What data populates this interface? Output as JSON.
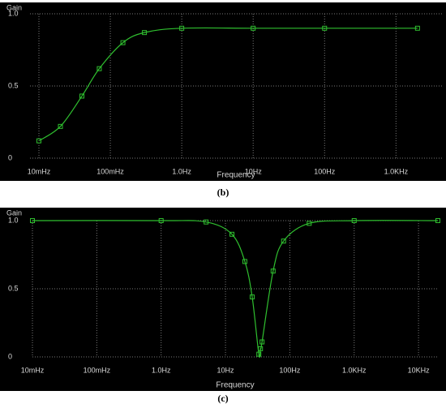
{
  "chart_data": [
    {
      "type": "line",
      "xlabel": "Frequency",
      "ylabel": "Gain",
      "caption": "(b)",
      "xlog": true,
      "grid": true,
      "color": "#2fbf2f",
      "background": "#000000",
      "x": [
        0.01,
        0.02,
        0.04,
        0.07,
        0.15,
        0.3,
        1.0,
        10,
        100,
        2000
      ],
      "values": [
        0.12,
        0.22,
        0.43,
        0.62,
        0.8,
        0.87,
        0.9,
        0.9,
        0.9,
        0.9
      ],
      "xlim": [
        0.0075,
        4400
      ],
      "ylim": [
        0,
        1.0
      ],
      "xticks": [
        {
          "value": 0.01,
          "label": "10mHz"
        },
        {
          "value": 0.1,
          "label": "100mHz"
        },
        {
          "value": 1,
          "label": "1.0Hz"
        },
        {
          "value": 10,
          "label": "10Hz"
        },
        {
          "value": 100,
          "label": "100Hz"
        },
        {
          "value": 1000,
          "label": "1.0KHz"
        }
      ],
      "yticks": [
        0,
        0.5,
        {
          "value": 1,
          "label": "1.0"
        }
      ]
    },
    {
      "type": "line",
      "xlabel": "Frequency",
      "ylabel": "Gain",
      "caption": "(c)",
      "xlog": true,
      "grid": true,
      "color": "#2fbf2f",
      "background": "#000000",
      "x": [
        0.01,
        1.0,
        5,
        12.6,
        20,
        26,
        33,
        35,
        37,
        55,
        80,
        200,
        1000,
        20000
      ],
      "values": [
        1.0,
        1.0,
        0.99,
        0.9,
        0.7,
        0.44,
        0.02,
        0.06,
        0.11,
        0.63,
        0.85,
        0.98,
        1.0,
        1.0
      ],
      "xlim": [
        0.01,
        20000
      ],
      "ylim": [
        0,
        1.0
      ],
      "xticks": [
        {
          "value": 0.01,
          "label": "10mHz"
        },
        {
          "value": 0.1,
          "label": "100mHz"
        },
        {
          "value": 1,
          "label": "1.0Hz"
        },
        {
          "value": 10,
          "label": "10Hz"
        },
        {
          "value": 100,
          "label": "100Hz"
        },
        {
          "value": 1000,
          "label": "1.0KHz"
        },
        {
          "value": 10000,
          "label": "10KHz"
        }
      ],
      "yticks": [
        0,
        0.5,
        {
          "value": 1,
          "label": "1.0"
        }
      ]
    }
  ]
}
